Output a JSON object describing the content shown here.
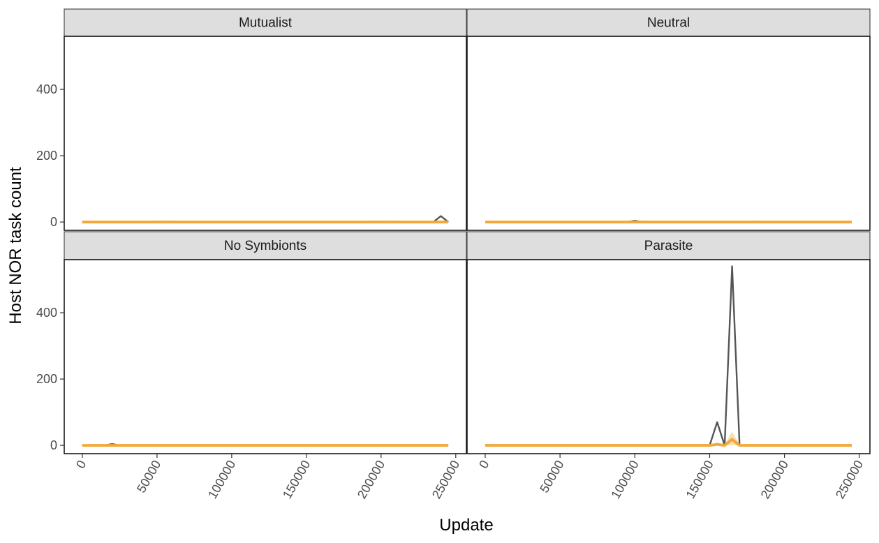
{
  "chart_data": {
    "type": "line",
    "xlabel": "Update",
    "ylabel": "Host NOR task count",
    "xlim": [
      0,
      245000
    ],
    "ylim": [
      -25,
      560
    ],
    "x_ticks": [
      0,
      50000,
      100000,
      150000,
      200000,
      250000
    ],
    "y_ticks": [
      0,
      200,
      400
    ],
    "grid": false,
    "colors": {
      "replicates": "#555555",
      "mean": "#f2a93b",
      "ribbon": "#f5c87a"
    },
    "facets": [
      {
        "label": "Mutualist",
        "dark": [
          [
            0,
            0
          ],
          [
            20000,
            0
          ],
          [
            55000,
            1
          ],
          [
            100000,
            0
          ],
          [
            150000,
            0
          ],
          [
            205000,
            1
          ],
          [
            235000,
            0
          ],
          [
            240000,
            18
          ],
          [
            245000,
            0
          ]
        ],
        "mean": [
          [
            0,
            0
          ],
          [
            55000,
            0
          ],
          [
            100000,
            0
          ],
          [
            150000,
            0
          ],
          [
            200000,
            0
          ],
          [
            245000,
            0
          ]
        ]
      },
      {
        "label": "Neutral",
        "dark": [
          [
            0,
            0
          ],
          [
            95000,
            0
          ],
          [
            100000,
            4
          ],
          [
            105000,
            0
          ],
          [
            175000,
            0
          ],
          [
            180000,
            1
          ],
          [
            185000,
            0
          ],
          [
            245000,
            0
          ]
        ],
        "mean": [
          [
            0,
            0
          ],
          [
            100000,
            0
          ],
          [
            150000,
            0
          ],
          [
            200000,
            0
          ],
          [
            245000,
            0
          ]
        ]
      },
      {
        "label": "No Symbionts",
        "dark": [
          [
            0,
            0
          ],
          [
            15000,
            0
          ],
          [
            20000,
            4
          ],
          [
            25000,
            0
          ],
          [
            100000,
            0
          ],
          [
            200000,
            0
          ],
          [
            245000,
            0
          ]
        ],
        "mean": [
          [
            0,
            0
          ],
          [
            100000,
            0
          ],
          [
            200000,
            0
          ],
          [
            245000,
            0
          ]
        ]
      },
      {
        "label": "Parasite",
        "dark": [
          [
            0,
            0
          ],
          [
            140000,
            0
          ],
          [
            150000,
            0
          ],
          [
            155000,
            70
          ],
          [
            160000,
            0
          ],
          [
            165000,
            540
          ],
          [
            170000,
            0
          ],
          [
            175000,
            0
          ],
          [
            245000,
            0
          ]
        ],
        "mean": [
          [
            0,
            0
          ],
          [
            150000,
            0
          ],
          [
            155000,
            3
          ],
          [
            160000,
            0
          ],
          [
            165000,
            18
          ],
          [
            170000,
            0
          ],
          [
            245000,
            0
          ]
        ],
        "ribbon": [
          [
            150000,
            0,
            0
          ],
          [
            155000,
            0,
            8
          ],
          [
            160000,
            0,
            2
          ],
          [
            165000,
            0,
            42
          ],
          [
            170000,
            0,
            2
          ],
          [
            175000,
            0,
            0
          ]
        ]
      }
    ]
  }
}
